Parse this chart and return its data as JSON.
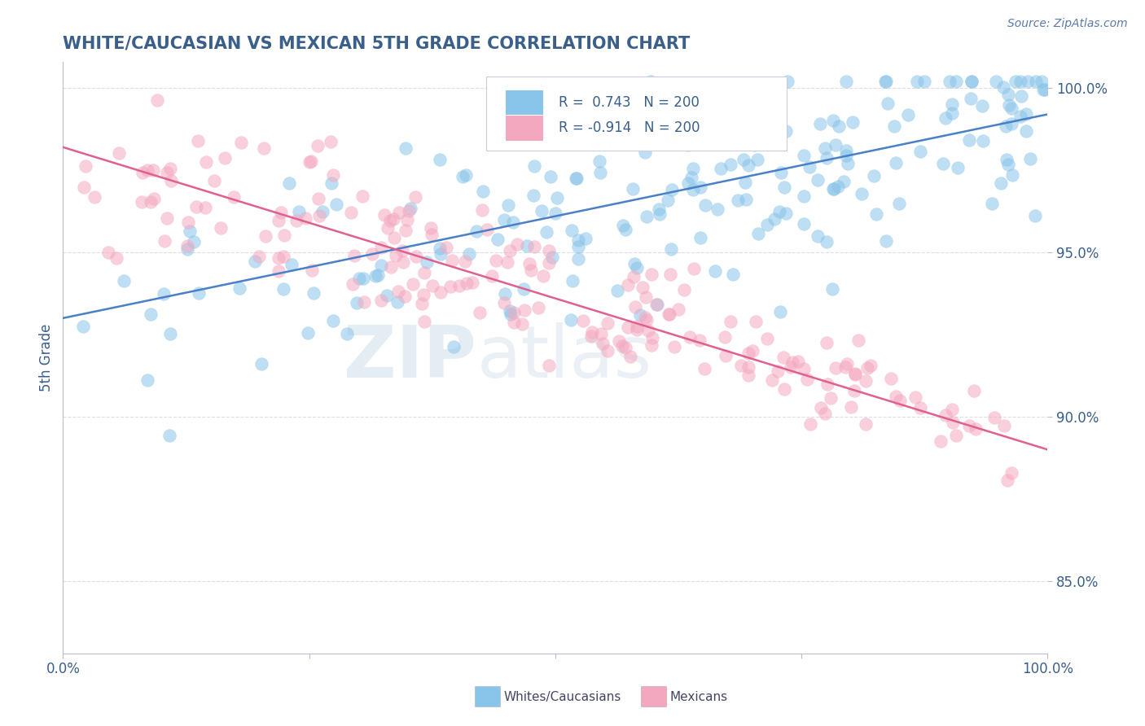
{
  "title": "WHITE/CAUCASIAN VS MEXICAN 5TH GRADE CORRELATION CHART",
  "source_text": "Source: ZipAtlas.com",
  "ylabel": "5th Grade",
  "xlim": [
    0,
    1.0
  ],
  "ylim": [
    0.828,
    1.008
  ],
  "yticks": [
    0.85,
    0.9,
    0.95,
    1.0
  ],
  "ytick_labels": [
    "85.0%",
    "90.0%",
    "95.0%",
    "100.0%"
  ],
  "xticks": [
    0.0,
    0.25,
    0.5,
    0.75,
    1.0
  ],
  "xtick_labels": [
    "0.0%",
    "",
    "",
    "",
    "100.0%"
  ],
  "blue_color": "#89C4EA",
  "pink_color": "#F4A8BF",
  "blue_line_color": "#4A80C8",
  "pink_line_color": "#E06090",
  "title_color": "#3A5F8A",
  "source_color": "#5A7AAA",
  "axis_color": "#BBBBCC",
  "grid_color": "#DDDDE8",
  "legend_text_color": "#3A5F8A",
  "bottom_legend_color": "#444466",
  "watermark_zip": "ZIP",
  "watermark_atlas": "atlas",
  "R_blue": 0.743,
  "R_pink": -0.914,
  "N_blue": 200,
  "N_pink": 200,
  "blue_intercept": 0.93,
  "blue_slope": 0.062,
  "pink_intercept": 0.982,
  "pink_slope": -0.092,
  "seed": 42,
  "n_points": 200
}
